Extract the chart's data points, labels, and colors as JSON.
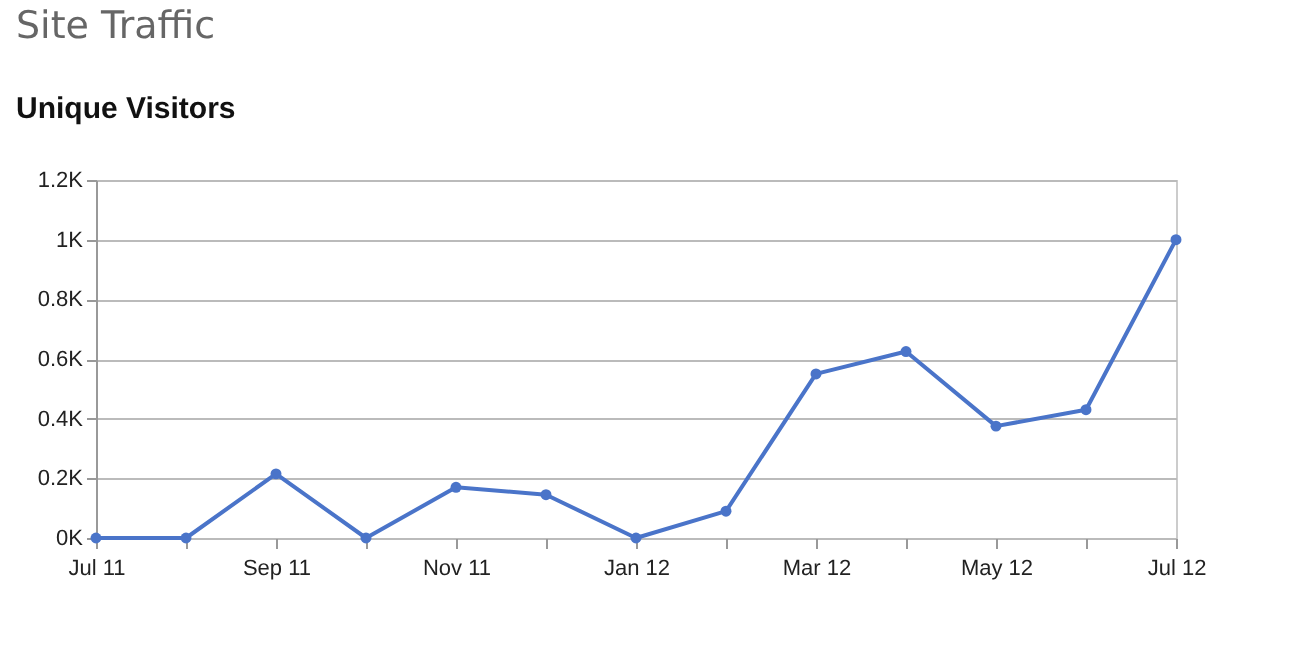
{
  "chart_data": {
    "type": "line",
    "title": "Site Traffic",
    "subtitle": "Unique Visitors",
    "categories": [
      "Jul 11",
      null,
      "Sep 11",
      null,
      "Nov 11",
      null,
      "Jan 12",
      null,
      "Mar 12",
      null,
      "May 12",
      null,
      "Jul 12"
    ],
    "series": [
      {
        "color": "#4a74c9",
        "values": [
          0,
          0,
          215,
          0,
          170,
          145,
          0,
          90,
          550,
          625,
          375,
          430,
          1000
        ]
      }
    ],
    "ylim": [
      0,
      1200
    ],
    "yticks": [
      {
        "value": 0,
        "label": "0K"
      },
      {
        "value": 200,
        "label": "0.2K"
      },
      {
        "value": 400,
        "label": "0.4K"
      },
      {
        "value": 600,
        "label": "0.6K"
      },
      {
        "value": 800,
        "label": "0.8K"
      },
      {
        "value": 1000,
        "label": "1K"
      },
      {
        "value": 1200,
        "label": "1.2K"
      }
    ],
    "grid": "y",
    "marker": "circle",
    "line_style": "solid"
  }
}
